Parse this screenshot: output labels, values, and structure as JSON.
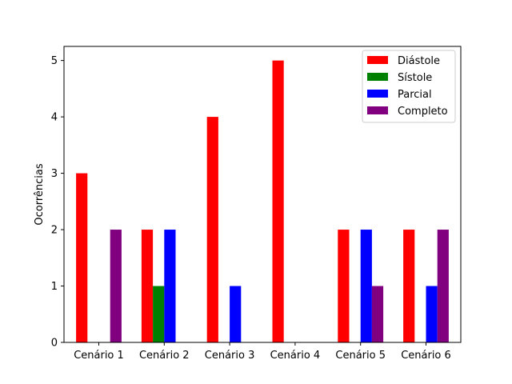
{
  "chart_data": {
    "type": "bar",
    "title": "",
    "xlabel": "",
    "ylabel": "Ocorrências",
    "categories": [
      "Cenário 1",
      "Cenário 2",
      "Cenário 3",
      "Cenário 4",
      "Cenário 5",
      "Cenário 6"
    ],
    "series": [
      {
        "name": "Diástole",
        "color": "#ff0000",
        "values": [
          3,
          2,
          4,
          5,
          2,
          2
        ]
      },
      {
        "name": "Sístole",
        "color": "#008000",
        "values": [
          0,
          1,
          0,
          0,
          0,
          0
        ]
      },
      {
        "name": "Parcial",
        "color": "#0000ff",
        "values": [
          0,
          2,
          1,
          0,
          2,
          1
        ]
      },
      {
        "name": "Completo",
        "color": "#800080",
        "values": [
          2,
          0,
          0,
          0,
          1,
          2
        ]
      }
    ],
    "ylim": [
      0,
      5.25
    ],
    "yticks": [
      0,
      1,
      2,
      3,
      4,
      5
    ],
    "grid": false,
    "legend_position": "top-right"
  }
}
